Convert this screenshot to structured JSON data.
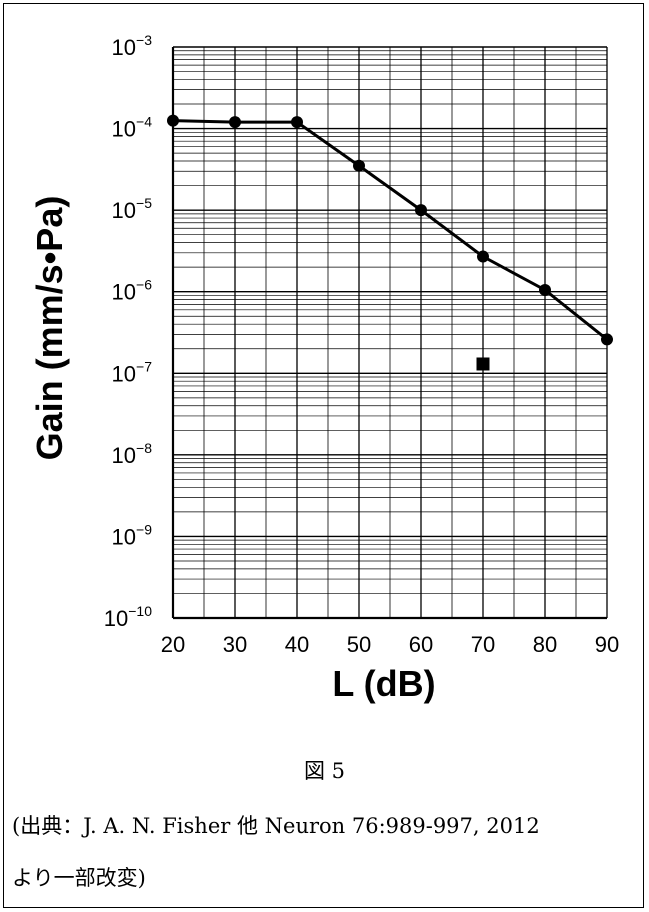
{
  "chart_data": {
    "type": "line",
    "xlabel": "L (dB)",
    "ylabel": "Gain (mm/s•Pa)",
    "x_ticks": [
      20,
      30,
      40,
      50,
      60,
      70,
      80,
      90
    ],
    "y_ticks": [
      {
        "base": "10",
        "exp": "−3"
      },
      {
        "base": "10",
        "exp": "−4"
      },
      {
        "base": "10",
        "exp": "−5"
      },
      {
        "base": "10",
        "exp": "−6"
      },
      {
        "base": "10",
        "exp": "−7"
      },
      {
        "base": "10",
        "exp": "−8"
      },
      {
        "base": "10",
        "exp": "−9"
      },
      {
        "base": "10",
        "exp": "−10"
      }
    ],
    "xlim": [
      20,
      90
    ],
    "ylim": [
      1e-10,
      0.001
    ],
    "yscale": "log",
    "grid": true,
    "series": [
      {
        "marker": "circle",
        "line": true,
        "x": [
          20,
          30,
          40,
          50,
          60,
          70,
          80,
          90
        ],
        "y": [
          0.000125,
          0.00012,
          0.00012,
          3.5e-05,
          1e-05,
          2.7e-06,
          1.05e-06,
          2.6e-07
        ]
      },
      {
        "marker": "square",
        "line": false,
        "x": [
          70
        ],
        "y": [
          1.3e-07
        ]
      }
    ]
  },
  "caption": {
    "figure_number": "図 5",
    "source_line1": "(出典：J. A. N. Fisher 他 Neuron 76:989-997, 2012",
    "source_line2": "より一部改変)"
  }
}
